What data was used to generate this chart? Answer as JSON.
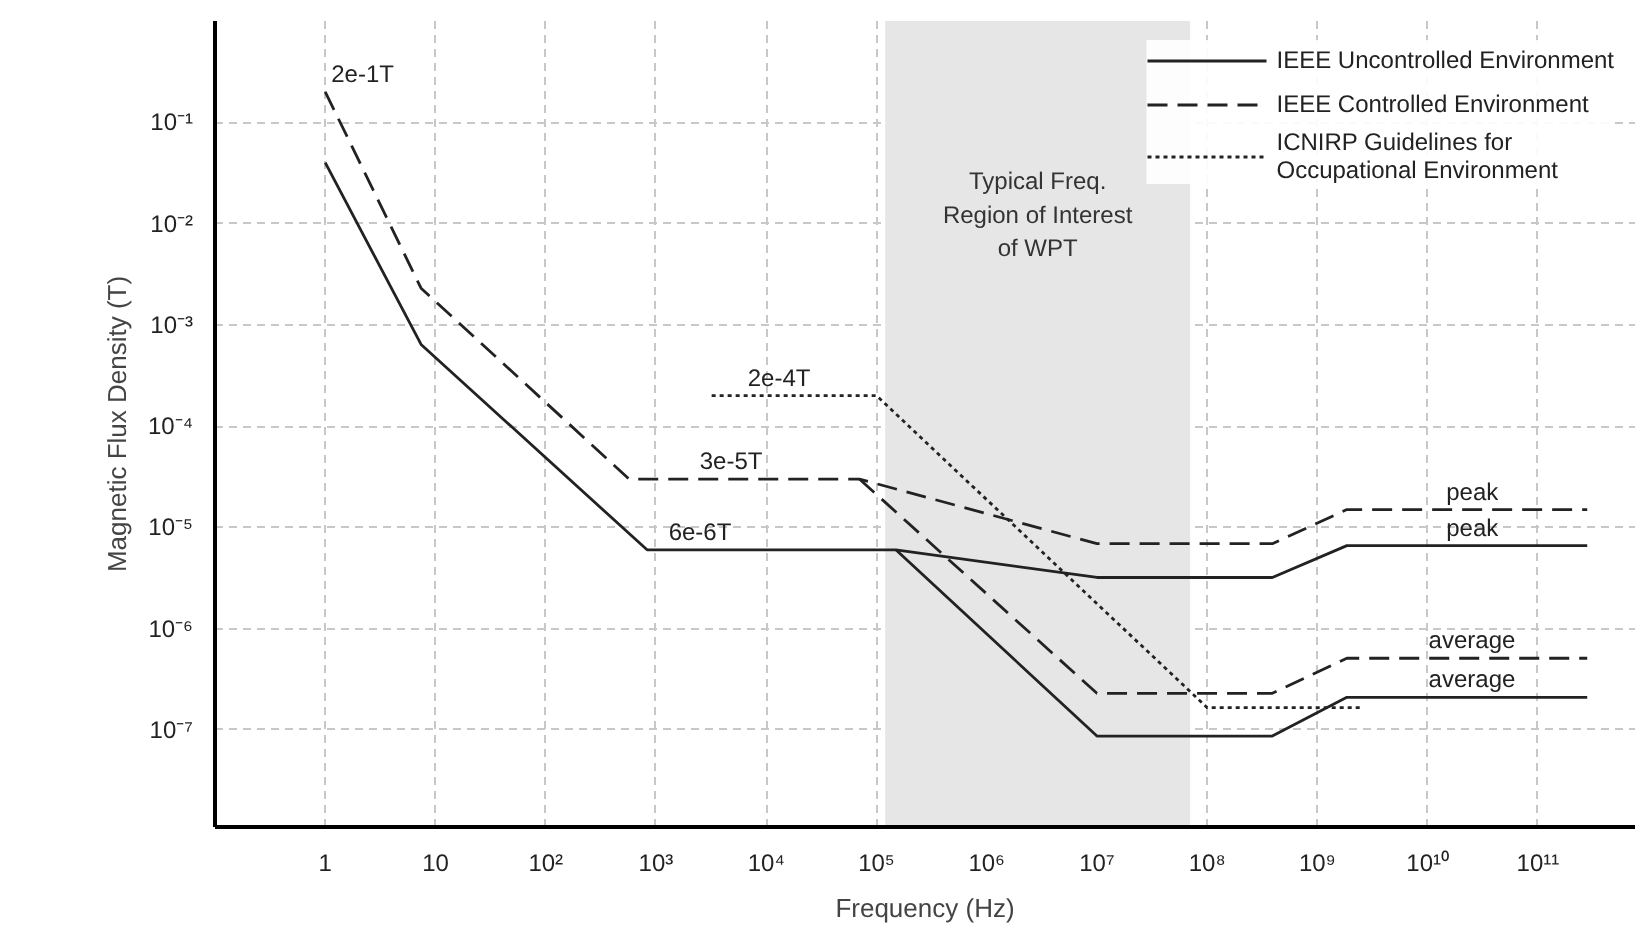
{
  "chart_data": {
    "type": "line",
    "xlabel": "Frequency (Hz)",
    "ylabel": "Magnetic Flux Density (T)",
    "log": "xy",
    "grid": true,
    "legend": "top right",
    "xlim": [
      0.1,
      760000000000.0
    ],
    "ylim": [
      1.1e-08,
      1
    ],
    "xticks": [
      1,
      10,
      {
        "value": 100,
        "label": "10²"
      },
      {
        "value": 1000,
        "label": "10³"
      },
      {
        "value": 10000,
        "label": "10⁴"
      },
      {
        "value": 100000,
        "label": "10⁵"
      },
      {
        "value": 1000000,
        "label": "10⁶"
      },
      {
        "value": 10000000,
        "label": "10⁷"
      },
      {
        "value": 100000000,
        "label": "10⁸"
      },
      {
        "value": 1000000000,
        "label": "10⁹"
      },
      {
        "value": 10000000000,
        "label": "10¹⁰"
      },
      {
        "value": 100000000000,
        "label": "10¹¹"
      }
    ],
    "yticks": [
      {
        "value": 1e-07,
        "label": "10⁻⁷"
      },
      {
        "value": 1e-06,
        "label": "10⁻⁶"
      },
      {
        "value": 1e-05,
        "label": "10⁻⁵"
      },
      {
        "value": 0.0001,
        "label": "10⁻⁴"
      },
      {
        "value": 0.001,
        "label": "10⁻³"
      },
      {
        "value": 0.01,
        "label": "10⁻²"
      },
      {
        "value": 0.1,
        "label": "10⁻¹"
      }
    ],
    "series": [
      {
        "name": "IEEE Uncontrolled Environment",
        "color": "#222222",
        "line_style": "solid",
        "x": [
          1,
          7.4,
          830,
          150000,
          10000000,
          390000000,
          1850000000,
          280000000000
        ],
        "values": [
          0.04,
          0.00064,
          6e-06,
          6e-06,
          3.2e-06,
          3.2e-06,
          6.6e-06,
          6.6e-06
        ]
      },
      {
        "color": "#222222",
        "line_style": "solid",
        "x": [
          150000,
          10000000,
          390000000,
          1850000000,
          280000000000
        ],
        "values": [
          6e-06,
          8.7e-08,
          8.7e-08,
          2.1e-07,
          2.1e-07
        ]
      },
      {
        "name": "IEEE Controlled Environment",
        "color": "#222222",
        "line_style": "dashed",
        "x": [
          1,
          7.4,
          570,
          70000,
          10000000,
          390000000,
          1850000000,
          280000000000
        ],
        "values": [
          0.2,
          0.0023,
          3e-05,
          3e-05,
          6.9e-06,
          6.9e-06,
          1.5e-05,
          1.5e-05
        ]
      },
      {
        "color": "#222222",
        "line_style": "dashed",
        "x": [
          70000,
          10000000,
          390000000,
          1850000000,
          280000000000
        ],
        "values": [
          3e-05,
          2.3e-07,
          2.3e-07,
          5.1e-07,
          5.1e-07
        ]
      },
      {
        "name": "ICNIRP Guidelines for\nOccupational Environment",
        "color": "#222222",
        "line_style": "dotted",
        "x": [
          3200,
          100000,
          100000000,
          2500000000
        ],
        "values": [
          0.0002,
          0.0002,
          1.66e-07,
          1.66e-07
        ]
      }
    ],
    "bands": [
      {
        "axis": "x",
        "from": 120000,
        "to": 70000000,
        "label": "Typical Freq.\nRegion of Interest\nof WPT",
        "color": "#e6e6e6"
      }
    ],
    "annotations": [
      {
        "text": "2e-1T",
        "x": 1,
        "y": 0.2
      },
      {
        "text": "2e-4T",
        "x": 6000,
        "y": 0.0002
      },
      {
        "text": "3e-5T",
        "x": 2200,
        "y": 3e-05
      },
      {
        "text": "6e-6T",
        "x": 1150,
        "y": 6e-06
      },
      {
        "text": "peak",
        "x": 13000000000,
        "y": 1.5e-05
      },
      {
        "text": "peak",
        "x": 13000000000,
        "y": 6.6e-06
      },
      {
        "text": "average",
        "x": 9000000000,
        "y": 5.1e-07
      },
      {
        "text": "average",
        "x": 9000000000,
        "y": 2.1e-07
      }
    ]
  }
}
